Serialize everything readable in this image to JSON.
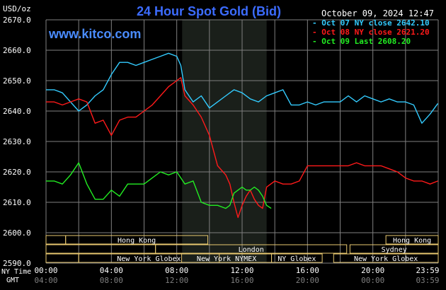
{
  "header": {
    "title": "24 Hour Spot Gold (Bid)",
    "unit": "USD/oz",
    "site": "www.kitco.com",
    "timestamp": "October 09, 2024 12:47"
  },
  "colors": {
    "background": "#000000",
    "grid": "#7f7f7f",
    "title": "#3c6cff",
    "site": "#4a8cff",
    "series_oct07": "#33ccff",
    "series_oct08": "#ff1a1a",
    "series_oct09": "#22ee22",
    "market_box": "#e8c870",
    "nymex_shade": "#1a1f1a"
  },
  "axis_labels": {
    "ny_time": "NY Time",
    "gmt": "GMT"
  },
  "markets": [
    {
      "label": "Hong Kong",
      "row": 0
    },
    {
      "label": "London",
      "row": 1
    },
    {
      "label": "New York Globex",
      "row": 2
    },
    {
      "label": "New York NYMEX",
      "row": 2
    },
    {
      "label": "NY Globex",
      "row": 2
    },
    {
      "label": "Hong Kong",
      "row": 0
    },
    {
      "label": "Sydney",
      "row": 1
    },
    {
      "label": "New York Globex",
      "row": 2
    }
  ],
  "chart_data": {
    "type": "line",
    "x_unit": "hours (NY time)",
    "xlim": [
      0,
      24
    ],
    "ylim": [
      2590,
      2670
    ],
    "y_ticks": [
      "2670.0",
      "2660.0",
      "2650.0",
      "2640.0",
      "2630.0",
      "2620.0",
      "2610.0",
      "2600.0",
      "2590.0"
    ],
    "x_ticks_ny": [
      "00:00",
      "04:00",
      "08:00",
      "12:00",
      "16:00",
      "20:00",
      "23:59"
    ],
    "x_ticks_gmt": [
      "04:00",
      "08:00",
      "12:00",
      "16:00",
      "20:00",
      "00:00",
      "03:59"
    ],
    "legend": "top-right",
    "series": [
      {
        "name": "Oct 07 NY close 2642.10",
        "x": [
          0,
          0.5,
          1,
          1.5,
          2,
          2.25,
          2.5,
          3,
          3.5,
          4,
          4.5,
          5,
          5.5,
          6,
          6.5,
          7,
          7.5,
          8,
          8.25,
          8.5,
          9,
          9.5,
          10,
          10.5,
          11,
          11.5,
          12,
          12.5,
          13,
          13.5,
          14,
          14.5,
          15,
          15.5,
          16,
          16.5,
          17,
          17.5,
          18,
          18.5,
          19,
          19.5,
          20,
          20.5,
          21,
          21.5,
          22,
          22.5,
          23,
          23.5,
          23.98
        ],
        "y": [
          2647,
          2647,
          2646,
          2643,
          2640,
          2641,
          2642,
          2645,
          2647,
          2652,
          2656,
          2656,
          2655,
          2656,
          2657,
          2658,
          2659,
          2658,
          2655,
          2647,
          2643,
          2645,
          2641,
          2643,
          2645,
          2647,
          2646,
          2644,
          2643,
          2645,
          2646,
          2647,
          2642,
          2642,
          2643,
          2642,
          2643,
          2643,
          2643,
          2645,
          2643,
          2645,
          2644,
          2643,
          2644,
          2643,
          2643,
          2642,
          2636,
          2639,
          2642.5
        ]
      },
      {
        "name": "Oct 08 NY close 2621.20",
        "x": [
          0,
          0.5,
          1,
          1.5,
          2,
          2.5,
          3,
          3.5,
          4,
          4.5,
          5,
          5.5,
          6,
          6.5,
          7,
          7.5,
          8,
          8.25,
          8.5,
          9,
          9.5,
          10,
          10.5,
          11,
          11.25,
          11.5,
          11.75,
          12,
          12.25,
          12.5,
          12.75,
          13,
          13.25,
          13.5,
          14,
          14.5,
          15,
          15.5,
          16,
          16.5,
          17,
          17.5,
          18,
          18.5,
          19,
          19.5,
          20,
          20.5,
          21,
          21.5,
          22,
          22.5,
          23,
          23.5,
          23.98
        ],
        "y": [
          2643,
          2643,
          2642,
          2643,
          2644,
          2643,
          2636,
          2637,
          2632,
          2637,
          2638,
          2638,
          2640,
          2642,
          2645,
          2648,
          2650,
          2651,
          2645,
          2642,
          2638,
          2632,
          2622,
          2619,
          2616,
          2610,
          2605,
          2609,
          2612,
          2614,
          2611,
          2609,
          2608,
          2615,
          2617,
          2616,
          2616,
          2617,
          2622,
          2622,
          2622,
          2622,
          2622,
          2622,
          2623,
          2622,
          2622,
          2622,
          2621,
          2620,
          2618,
          2617,
          2617,
          2616,
          2617
        ]
      },
      {
        "name": "Oct 09 Last 2608.20",
        "x": [
          0,
          0.5,
          1,
          1.5,
          2,
          2.5,
          3,
          3.5,
          4,
          4.5,
          5,
          5.5,
          6,
          6.5,
          7,
          7.5,
          8,
          8.5,
          9,
          9.5,
          10,
          10.5,
          11,
          11.25,
          11.5,
          11.75,
          12,
          12.25,
          12.5,
          12.75,
          13,
          13.25,
          13.5,
          13.78
        ],
        "y": [
          2617,
          2617,
          2616,
          2619,
          2623,
          2616,
          2611,
          2611,
          2614,
          2612,
          2616,
          2616,
          2616,
          2618,
          2620,
          2619,
          2620,
          2616,
          2617,
          2610,
          2609,
          2609,
          2608,
          2609,
          2613,
          2614,
          2615,
          2614,
          2614,
          2615,
          2614,
          2612,
          2609,
          2608
        ]
      }
    ]
  }
}
